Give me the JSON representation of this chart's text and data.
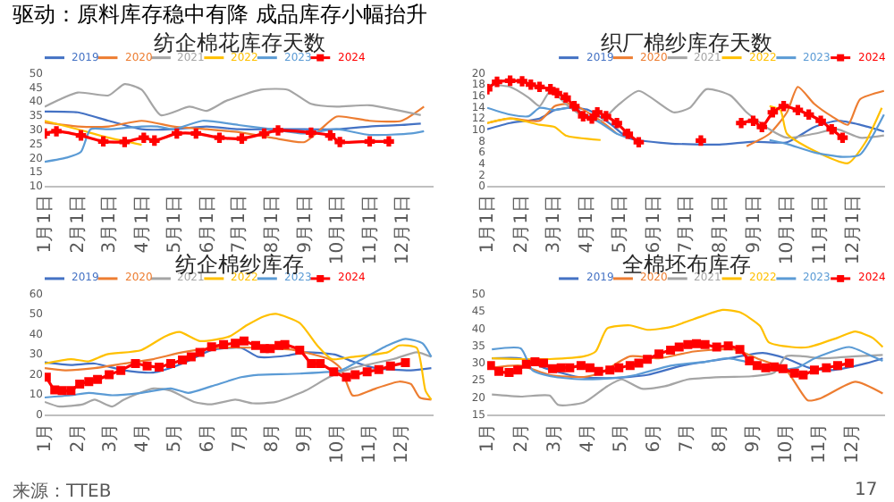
{
  "chart_data": [
    {
      "type": "line",
      "title": "纺企棉花库存天数",
      "annotations": [
        "驱动：原料库存稳中有降 成品库存小幅抬升"
      ],
      "xlim": [
        "--01-01",
        "--12-31"
      ],
      "xticks": [
        {
          "value": "--01-01",
          "label": "1月1日"
        },
        {
          "value": "--02-01",
          "label": "2月1日"
        },
        {
          "value": "--03-01",
          "label": "3月1日"
        },
        {
          "value": "--04-01",
          "label": "4月1日"
        },
        {
          "value": "--05-01",
          "label": "5月1日"
        },
        {
          "value": "--06-01",
          "label": "6月1日"
        },
        {
          "value": "--07-01",
          "label": "7月1日"
        },
        {
          "value": "--08-01",
          "label": "8月1日"
        },
        {
          "value": "--09-01",
          "label": "9月1日"
        },
        {
          "value": "--10-01",
          "label": "10月1日"
        },
        {
          "value": "--11-01",
          "label": "11月1日"
        },
        {
          "value": "--12-01",
          "label": "12月1日"
        }
      ],
      "ylim": [
        10,
        50
      ],
      "yticks": [
        10,
        15,
        20,
        25,
        30,
        35,
        40,
        45,
        50
      ],
      "legend": "top",
      "line_style": "solid",
      "series": [
        {
          "name": "2019",
          "color": "#4472c4",
          "x": [
            "--01-01",
            "--02-01",
            "--03-01",
            "--04-01",
            "--05-01",
            "--06-01",
            "--07-01",
            "--08-01",
            "--09-01",
            "--10-01",
            "--11-01",
            "--12-01",
            "--12-19"
          ],
          "values": [
            36.3,
            36,
            33,
            30,
            30,
            31,
            30,
            30,
            30,
            30,
            31,
            31.5,
            32
          ]
        },
        {
          "name": "2020",
          "color": "#ed7d31",
          "x": [
            "--01-01",
            "--02-01",
            "--03-01",
            "--04-01",
            "--05-01",
            "--06-01",
            "--07-01",
            "--08-01",
            "--09-01",
            "--09-16",
            "--10-01",
            "--11-01",
            "--12-01",
            "--12-22"
          ],
          "values": [
            32.4,
            31,
            31,
            33,
            31,
            30,
            29,
            27,
            25.5,
            30,
            34.5,
            33,
            33,
            38
          ]
        },
        {
          "name": "2021",
          "color": "#a5a5a5",
          "x": [
            "--01-01",
            "--02-01",
            "--03-01",
            "--03-16",
            "--04-01",
            "--04-19",
            "--05-16",
            "--06-01",
            "--06-19",
            "--07-22",
            "--08-16",
            "--09-07",
            "--10-01",
            "--11-01",
            "--12-19"
          ],
          "values": [
            38,
            43,
            42,
            46,
            44,
            35,
            38,
            36.5,
            40,
            44,
            44,
            39,
            38,
            38.5,
            35
          ]
        },
        {
          "name": "2022",
          "color": "#ffc000",
          "x": [
            "--01-01",
            "--02-01",
            "--03-01",
            "--04-01"
          ],
          "values": [
            33,
            30,
            27,
            24.5
          ]
        },
        {
          "name": "2023",
          "color": "#5b9bd5",
          "x": [
            "--01-01",
            "--01-22",
            "--02-04",
            "--02-13",
            "--03-01",
            "--04-01",
            "--04-16",
            "--05-01",
            "--05-28",
            "--07-01",
            "--08-01",
            "--09-01",
            "--10-01",
            "--11-01",
            "--12-10",
            "--12-22"
          ],
          "values": [
            18.5,
            20,
            22,
            30,
            30,
            31,
            31,
            30,
            33,
            31.5,
            30,
            28.5,
            30,
            28,
            28.5,
            29.3
          ]
        },
        {
          "name": "2024",
          "color": "#ff0000",
          "marker": "cross",
          "x": [
            "--01-01",
            "--01-12",
            "--02-04",
            "--02-25",
            "--03-16",
            "--04-03",
            "--04-13",
            "--05-04",
            "--05-22",
            "--06-13",
            "--07-04",
            "--07-25",
            "--08-07",
            "--09-07",
            "--09-25",
            "--10-04",
            "--11-01",
            "--11-19"
          ],
          "values": [
            28.5,
            29.3,
            27.8,
            25.7,
            25.5,
            27,
            26,
            28.5,
            28.5,
            27,
            26.7,
            28.5,
            29.6,
            28.8,
            27.8,
            25.5,
            25.7,
            25.7
          ]
        }
      ]
    },
    {
      "type": "line",
      "title": "织厂棉纱库存天数",
      "xlim": [
        "--01-01",
        "--12-31"
      ],
      "xticks": [
        {
          "value": "--01-01",
          "label": "1月1日"
        },
        {
          "value": "--02-01",
          "label": "2月1日"
        },
        {
          "value": "--03-01",
          "label": "3月1日"
        },
        {
          "value": "--04-01",
          "label": "4月1日"
        },
        {
          "value": "--05-01",
          "label": "5月1日"
        },
        {
          "value": "--06-01",
          "label": "6月1日"
        },
        {
          "value": "--07-01",
          "label": "7月1日"
        },
        {
          "value": "--08-01",
          "label": "8月1日"
        },
        {
          "value": "--09-01",
          "label": "9月1日"
        },
        {
          "value": "--10-01",
          "label": "10月1日"
        },
        {
          "value": "--11-01",
          "label": "11月1日"
        },
        {
          "value": "--12-01",
          "label": "12月1日"
        }
      ],
      "ylim": [
        0,
        20
      ],
      "yticks": [
        0,
        2,
        4,
        6,
        8,
        10,
        12,
        14,
        16,
        18,
        20
      ],
      "legend": "top",
      "line_style": "solid",
      "series": [
        {
          "name": "2019",
          "color": "#4472c4",
          "x": [
            "--01-01",
            "--01-22",
            "--02-18",
            "--03-03",
            "--03-18",
            "--04-03",
            "--04-24",
            "--05-09",
            "--06-16",
            "--08-01",
            "--09-01",
            "--10-02",
            "--10-27",
            "--11-17",
            "--12-08",
            "--12-30"
          ],
          "values": [
            10,
            11.1,
            11.9,
            13.4,
            13.8,
            13.4,
            10.8,
            8.5,
            7.5,
            7.3,
            7.8,
            7.7,
            10.4,
            11.5,
            10.8,
            9.6
          ]
        },
        {
          "name": "2020",
          "color": "#ed7d31",
          "x": [
            "--01-01",
            "--01-22",
            "--02-18",
            "--03-03",
            "--03-18",
            "--04-14",
            "--04-29",
            "--07-01",
            "--08-26",
            "--09-16",
            "--10-02",
            "--10-12",
            "--10-27",
            "--11-12",
            "--11-27",
            "--12-08",
            "--12-30"
          ],
          "values": [
            11.1,
            11.9,
            11.5,
            14.1,
            14.5,
            11.5,
            9.2,
            null,
            7,
            9.2,
            13,
            17.5,
            14.5,
            12.3,
            10.8,
            15.3,
            16.8
          ]
        },
        {
          "name": "2021",
          "color": "#a5a5a5",
          "x": [
            "--01-01",
            "--01-22",
            "--02-08",
            "--02-18",
            "--02-28",
            "--03-13",
            "--03-29",
            "--04-14",
            "--04-29",
            "--05-19",
            "--06-20",
            "--07-05",
            "--07-20",
            "--08-11",
            "--08-26",
            "--09-16",
            "--10-02",
            "--10-27",
            "--11-17",
            "--12-08",
            "--12-30"
          ],
          "values": [
            17.9,
            17.5,
            15.6,
            14.1,
            16.8,
            14.5,
            12.3,
            11.5,
            14.1,
            16.8,
            13,
            13.8,
            17.1,
            16,
            13,
            10,
            8.5,
            9.2,
            10,
            8.5,
            8.9
          ]
        },
        {
          "name": "2022",
          "color": "#ffc000",
          "x": [
            "--01-01",
            "--01-22",
            "--02-18",
            "--03-03",
            "--03-13",
            "--04-14",
            "--07-01",
            "--09-16",
            "--09-26",
            "--10-02",
            "--10-27",
            "--11-27",
            "--12-13",
            "--12-28"
          ],
          "values": [
            11.1,
            11.9,
            10.8,
            10.4,
            8.9,
            8.1,
            null,
            14.1,
            13.4,
            9.2,
            6.2,
            4,
            7.7,
            13.8
          ]
        },
        {
          "name": "2023",
          "color": "#5b9bd5",
          "x": [
            "--01-01",
            "--01-22",
            "--02-08",
            "--02-18",
            "--03-03",
            "--03-18",
            "--04-14",
            "--04-29",
            "--05-09",
            "--07-01",
            "--09-16",
            "--10-02",
            "--10-27",
            "--11-22",
            "--12-08",
            "--12-30"
          ],
          "values": [
            13.8,
            12.6,
            12.3,
            13.8,
            13.4,
            13.8,
            11.1,
            9.2,
            8.5,
            null,
            8.1,
            7.4,
            5.9,
            5.1,
            5.5,
            12.6
          ]
        },
        {
          "name": "2024",
          "color": "#ff0000",
          "marker": "cross",
          "x": [
            "--01-01",
            "--01-10",
            "--01-22",
            "--02-02",
            "--02-10",
            "--02-18",
            "--02-28",
            "--03-05",
            "--03-13",
            "--03-21",
            "--03-29",
            "--04-06",
            "--04-11",
            "--04-19",
            "--04-29",
            "--05-09",
            "--05-19",
            "--06-16",
            "--07-15",
            "--08-04",
            "--08-21",
            "--09-01",
            "--09-09",
            "--09-19",
            "--09-29",
            "--10-12",
            "--10-22",
            "--11-02",
            "--11-12",
            "--11-22"
          ],
          "values": [
            17.1,
            18.4,
            18.6,
            18.5,
            17.9,
            17.5,
            17.1,
            16.4,
            15.6,
            14.1,
            12.3,
            11.9,
            13,
            12.3,
            11.1,
            9.2,
            7.7,
            null,
            8,
            null,
            11.1,
            11.5,
            10.4,
            13,
            14.1,
            13.4,
            12.6,
            11.5,
            10,
            8.5
          ]
        }
      ]
    },
    {
      "type": "line",
      "title": "纺企棉纱库存",
      "annotations": [
        "来源：TTEB"
      ],
      "xlim": [
        1,
        13
      ],
      "xticks": [
        {
          "value": 1,
          "label": "1月"
        },
        {
          "value": 2,
          "label": "2月"
        },
        {
          "value": 3,
          "label": "3月"
        },
        {
          "value": 4,
          "label": "4月"
        },
        {
          "value": 5,
          "label": "5月"
        },
        {
          "value": 6,
          "label": "6月"
        },
        {
          "value": 7,
          "label": "7月"
        },
        {
          "value": 8,
          "label": "8月"
        },
        {
          "value": 9,
          "label": "9月"
        },
        {
          "value": 10,
          "label": "10月"
        },
        {
          "value": 11,
          "label": "11月"
        },
        {
          "value": 12,
          "label": "12月"
        }
      ],
      "ylim": [
        0,
        60
      ],
      "yticks": [
        0,
        10,
        20,
        30,
        40,
        50,
        60
      ],
      "legend": "top",
      "line_style": "solid",
      "series": [
        {
          "name": "2019",
          "color": "#4472c4",
          "x": [
            1,
            1.81,
            2.54,
            3.44,
            4.35,
            5.25,
            6.15,
            7.06,
            7.6,
            8.5,
            9.05,
            9.95,
            10.49,
            11.22,
            12.3,
            12.93
          ],
          "values": [
            25.8,
            24.5,
            25.2,
            21.8,
            20.7,
            25.2,
            31.9,
            33,
            28.5,
            29.2,
            30.8,
            29.7,
            26.3,
            22.9,
            21.8,
            22.9
          ]
        },
        {
          "name": "2020",
          "color": "#ed7d31",
          "x": [
            1,
            1.63,
            2.54,
            3.44,
            4.35,
            5.25,
            6.33,
            7.6,
            8.69,
            9.77,
            10.13,
            10.49,
            10.67,
            11.22,
            11.94,
            12.3,
            12.57,
            12.93
          ],
          "values": [
            22.9,
            21.8,
            22.9,
            25.2,
            27.4,
            30.8,
            33,
            33,
            31.9,
            27.4,
            22.9,
            9.4,
            9.4,
            12.8,
            16.2,
            15,
            8.3,
            7.2
          ]
        },
        {
          "name": "2021",
          "color": "#a5a5a5",
          "x": [
            1,
            1.45,
            2.18,
            2.54,
            3.08,
            3.44,
            4.35,
            4.89,
            5.61,
            6.15,
            6.88,
            7.42,
            8.14,
            9.05,
            9.77,
            10.49,
            11.76,
            12.48,
            12.93
          ],
          "values": [
            6.1,
            3.8,
            4.9,
            7.2,
            3.8,
            7.2,
            12.8,
            11.7,
            6.1,
            4.9,
            7.2,
            5.4,
            6.1,
            11.7,
            18.4,
            22.9,
            27.4,
            30.8,
            28.5
          ]
        },
        {
          "name": "2022",
          "color": "#ffc000",
          "x": [
            1,
            1.81,
            2.36,
            2.9,
            3.98,
            4.71,
            5.16,
            5.79,
            6.7,
            7.24,
            7.78,
            8.14,
            8.87,
            9.41,
            9.86,
            10.49,
            11.58,
            11.94,
            12.48,
            12.75,
            12.93
          ],
          "values": [
            25.2,
            27.4,
            26.3,
            29.7,
            31.9,
            38.7,
            40.9,
            36.4,
            38.7,
            44.3,
            48.8,
            49.9,
            45.4,
            34.2,
            27.4,
            28.5,
            30.8,
            34.2,
            33,
            11.7,
            7.2
          ]
        },
        {
          "name": "2023",
          "color": "#5b9bd5",
          "x": [
            1,
            1.81,
            2.36,
            3.08,
            3.98,
            4.89,
            5.43,
            6.15,
            7.06,
            7.6,
            8.87,
            10.13,
            10.67,
            11.58,
            12.13,
            12.66,
            12.93
          ],
          "values": [
            8.3,
            9.4,
            10.6,
            9.4,
            10.6,
            12.8,
            10.6,
            13.9,
            18.4,
            19.6,
            20.2,
            21.8,
            26.3,
            34.2,
            37.5,
            35.3,
            28.5
          ]
        },
        {
          "name": "2024",
          "color": "#ff0000",
          "marker": "square",
          "x": [
            1.05,
            1.31,
            1.54,
            1.81,
            2.08,
            2.36,
            2.63,
            2.99,
            3.35,
            3.8,
            4.16,
            4.53,
            4.89,
            5.25,
            5.52,
            5.79,
            6.15,
            6.52,
            6.88,
            7.15,
            7.51,
            7.78,
            7.96,
            8.23,
            8.41,
            8.87,
            9.23,
            9.5,
            9.92,
            10.31,
            10.58,
            10.95,
            11.31,
            11.67,
            12.13
          ],
          "values": [
            18.4,
            12.1,
            11.7,
            11.7,
            15,
            16.2,
            17.3,
            19.6,
            21.8,
            25.2,
            24,
            23.4,
            25.2,
            27,
            28.5,
            30.8,
            33.5,
            34.6,
            35.3,
            36.4,
            34.2,
            32.6,
            32.6,
            34.2,
            34.6,
            31.9,
            25.2,
            25.2,
            21.1,
            18.4,
            19.6,
            21.1,
            22.2,
            24,
            25.6
          ]
        }
      ]
    },
    {
      "type": "line",
      "title": "全棉坯布库存",
      "annotations": [
        "17"
      ],
      "xlim": [
        1,
        13
      ],
      "xticks": [
        {
          "value": 1,
          "label": "1月"
        },
        {
          "value": 2,
          "label": "2月"
        },
        {
          "value": 3,
          "label": "3月"
        },
        {
          "value": 4,
          "label": "4月"
        },
        {
          "value": 5,
          "label": "5月"
        },
        {
          "value": 6,
          "label": "6月"
        },
        {
          "value": 7,
          "label": "7月"
        },
        {
          "value": 8,
          "label": "8月"
        },
        {
          "value": 9,
          "label": "9月"
        },
        {
          "value": 10,
          "label": "10月"
        },
        {
          "value": 11,
          "label": "11月"
        },
        {
          "value": 12,
          "label": "12月"
        }
      ],
      "ylim": [
        15,
        50
      ],
      "yticks": [
        15,
        20,
        25,
        30,
        35,
        40,
        45,
        50
      ],
      "legend": "top",
      "line_style": "solid",
      "series": [
        {
          "name": "2019",
          "color": "#4472c4",
          "x": [
            1.14,
            2.01,
            2.7,
            3.75,
            4.79,
            5.83,
            6.88,
            8.27,
            9.31,
            10.01,
            10.7,
            11.4,
            12.44,
            12.93
          ],
          "values": [
            31.2,
            31.2,
            28.5,
            25.8,
            25.5,
            26.4,
            29.1,
            31.2,
            32.8,
            31.2,
            28.5,
            27.8,
            29.8,
            31.2
          ]
        },
        {
          "name": "2020",
          "color": "#ed7d31",
          "x": [
            1.14,
            2.01,
            2.88,
            3.92,
            4.44,
            5.31,
            6.18,
            7.23,
            8.44,
            9.14,
            10.01,
            10.67,
            11.05,
            12.1,
            12.93
          ],
          "values": [
            28.5,
            29.1,
            26.4,
            25.8,
            27.1,
            31.8,
            31.2,
            33.2,
            33.8,
            31.2,
            27.8,
            19,
            19.6,
            24.4,
            21
          ]
        },
        {
          "name": "2021",
          "color": "#a5a5a5",
          "x": [
            1.14,
            2.01,
            2.88,
            3.14,
            3.92,
            4.62,
            5.05,
            5.66,
            6.36,
            7.05,
            8.1,
            8.97,
            9.66,
            10.01,
            10.53,
            11.05,
            12.1,
            12.93
          ],
          "values": [
            20.7,
            20.1,
            20.4,
            17.7,
            18.4,
            23.1,
            25.1,
            22.4,
            23.1,
            25.1,
            25.8,
            26,
            27.1,
            31.8,
            31.8,
            31.2,
            31.8,
            32.2
          ]
        },
        {
          "name": "2022",
          "color": "#ffc000",
          "x": [
            1.14,
            2.01,
            2.88,
            3.92,
            4.27,
            4.62,
            5.31,
            5.83,
            6.53,
            7.23,
            8.1,
            8.62,
            9.23,
            9.49,
            10.18,
            10.7,
            11.57,
            12.1,
            12.62,
            12.93
          ],
          "values": [
            31.2,
            31,
            31,
            31.8,
            33.2,
            39.9,
            40.8,
            39.5,
            40.3,
            42.6,
            45.3,
            44.6,
            40.6,
            35.9,
            34.5,
            34.5,
            37.2,
            39,
            37.2,
            34.5
          ]
        },
        {
          "name": "2023",
          "color": "#5b9bd5",
          "x": [
            1.14,
            2.01,
            2.36,
            3.05,
            3.92,
            4.79,
            5.49,
            6.53,
            7.57,
            8.27,
            8.97,
            9.66,
            10.36,
            10.87,
            11.92,
            12.62,
            12.93
          ],
          "values": [
            33.8,
            34.1,
            27.8,
            25.8,
            25.1,
            25.5,
            26.4,
            29.1,
            30.2,
            31.2,
            29.8,
            27.8,
            28.5,
            31.2,
            34.5,
            31.8,
            30.5
          ]
        },
        {
          "name": "2024",
          "color": "#ff0000",
          "marker": "square",
          "x": [
            1.1,
            1.35,
            1.66,
            1.92,
            2.18,
            2.44,
            2.7,
            2.97,
            3.23,
            3.49,
            3.83,
            4.1,
            4.36,
            4.7,
            4.97,
            5.31,
            5.57,
            5.83,
            6.18,
            6.53,
            6.79,
            7.05,
            7.31,
            7.57,
            7.92,
            8.27,
            8.62,
            8.91,
            9.14,
            9.4,
            9.66,
            9.92,
            10.27,
            10.53,
            10.87,
            11.23,
            11.57,
            11.92
          ],
          "values": [
            29.1,
            27.4,
            27.1,
            27.8,
            29.5,
            30.2,
            29.8,
            28.2,
            28.5,
            28.5,
            29.1,
            28.5,
            27.4,
            27.8,
            28.5,
            29.1,
            29.8,
            30.9,
            32.5,
            33.6,
            34.5,
            35.2,
            35.5,
            35.2,
            34.5,
            34.8,
            33.8,
            30.5,
            29.1,
            28.5,
            28.7,
            28.2,
            26.9,
            26.4,
            27.8,
            28.5,
            29.1,
            29.8
          ]
        }
      ]
    }
  ]
}
